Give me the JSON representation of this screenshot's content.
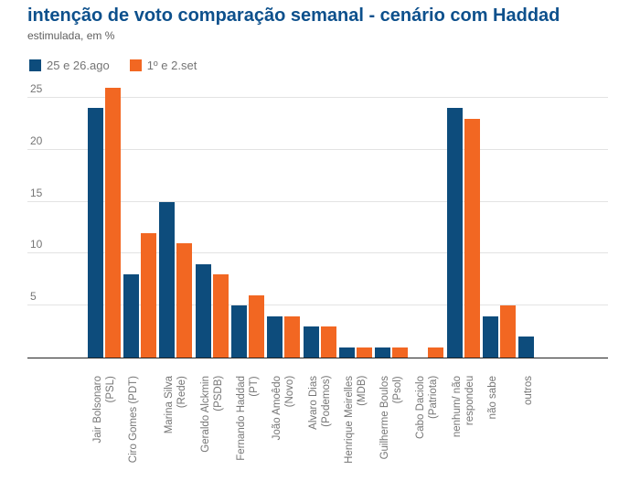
{
  "header": {
    "title": "intenção de voto comparação semanal - cenário com Haddad",
    "subtitle": "estimulada, em %"
  },
  "chart_data": {
    "type": "bar",
    "title": "intenção de voto comparação semanal - cenário com Haddad",
    "subtitle": "estimulada, em %",
    "unit": "%",
    "categories": [
      "Jair Bolsonaro\n(PSL)",
      "Ciro Gomes (PDT)",
      "Marina Silva\n(Rede)",
      "Geraldo Alckmin\n(PSDB)",
      "Fernando Haddad\n(PT)",
      "João Amoêdo\n(Novo)",
      "Alvaro Dias\n(Podemos)",
      "Henrique Meirelles\n(MDB)",
      "Guilherme Boulos\n(Psol)",
      "Cabo Daciolo\n(Patriota)",
      "nenhum/ não\nrespondeu",
      "não sabe",
      "outros"
    ],
    "series": [
      {
        "name": "25 e 26.ago",
        "color": "#0d4c7c",
        "values": [
          24,
          8,
          15,
          9,
          5,
          4,
          3,
          1,
          1,
          0,
          24,
          4,
          2
        ]
      },
      {
        "name": "1º e 2.set",
        "color": "#f26722",
        "values": [
          26,
          12,
          11,
          8,
          6,
          4,
          3,
          1,
          1,
          1,
          23,
          5,
          0
        ]
      }
    ],
    "xlabel": "",
    "ylabel": "",
    "ylim": [
      0,
      26
    ],
    "yticks": [
      5,
      10,
      15,
      20,
      25
    ],
    "grid": true,
    "legend_position": "top-left",
    "x_tick_rotation_deg": 90
  }
}
